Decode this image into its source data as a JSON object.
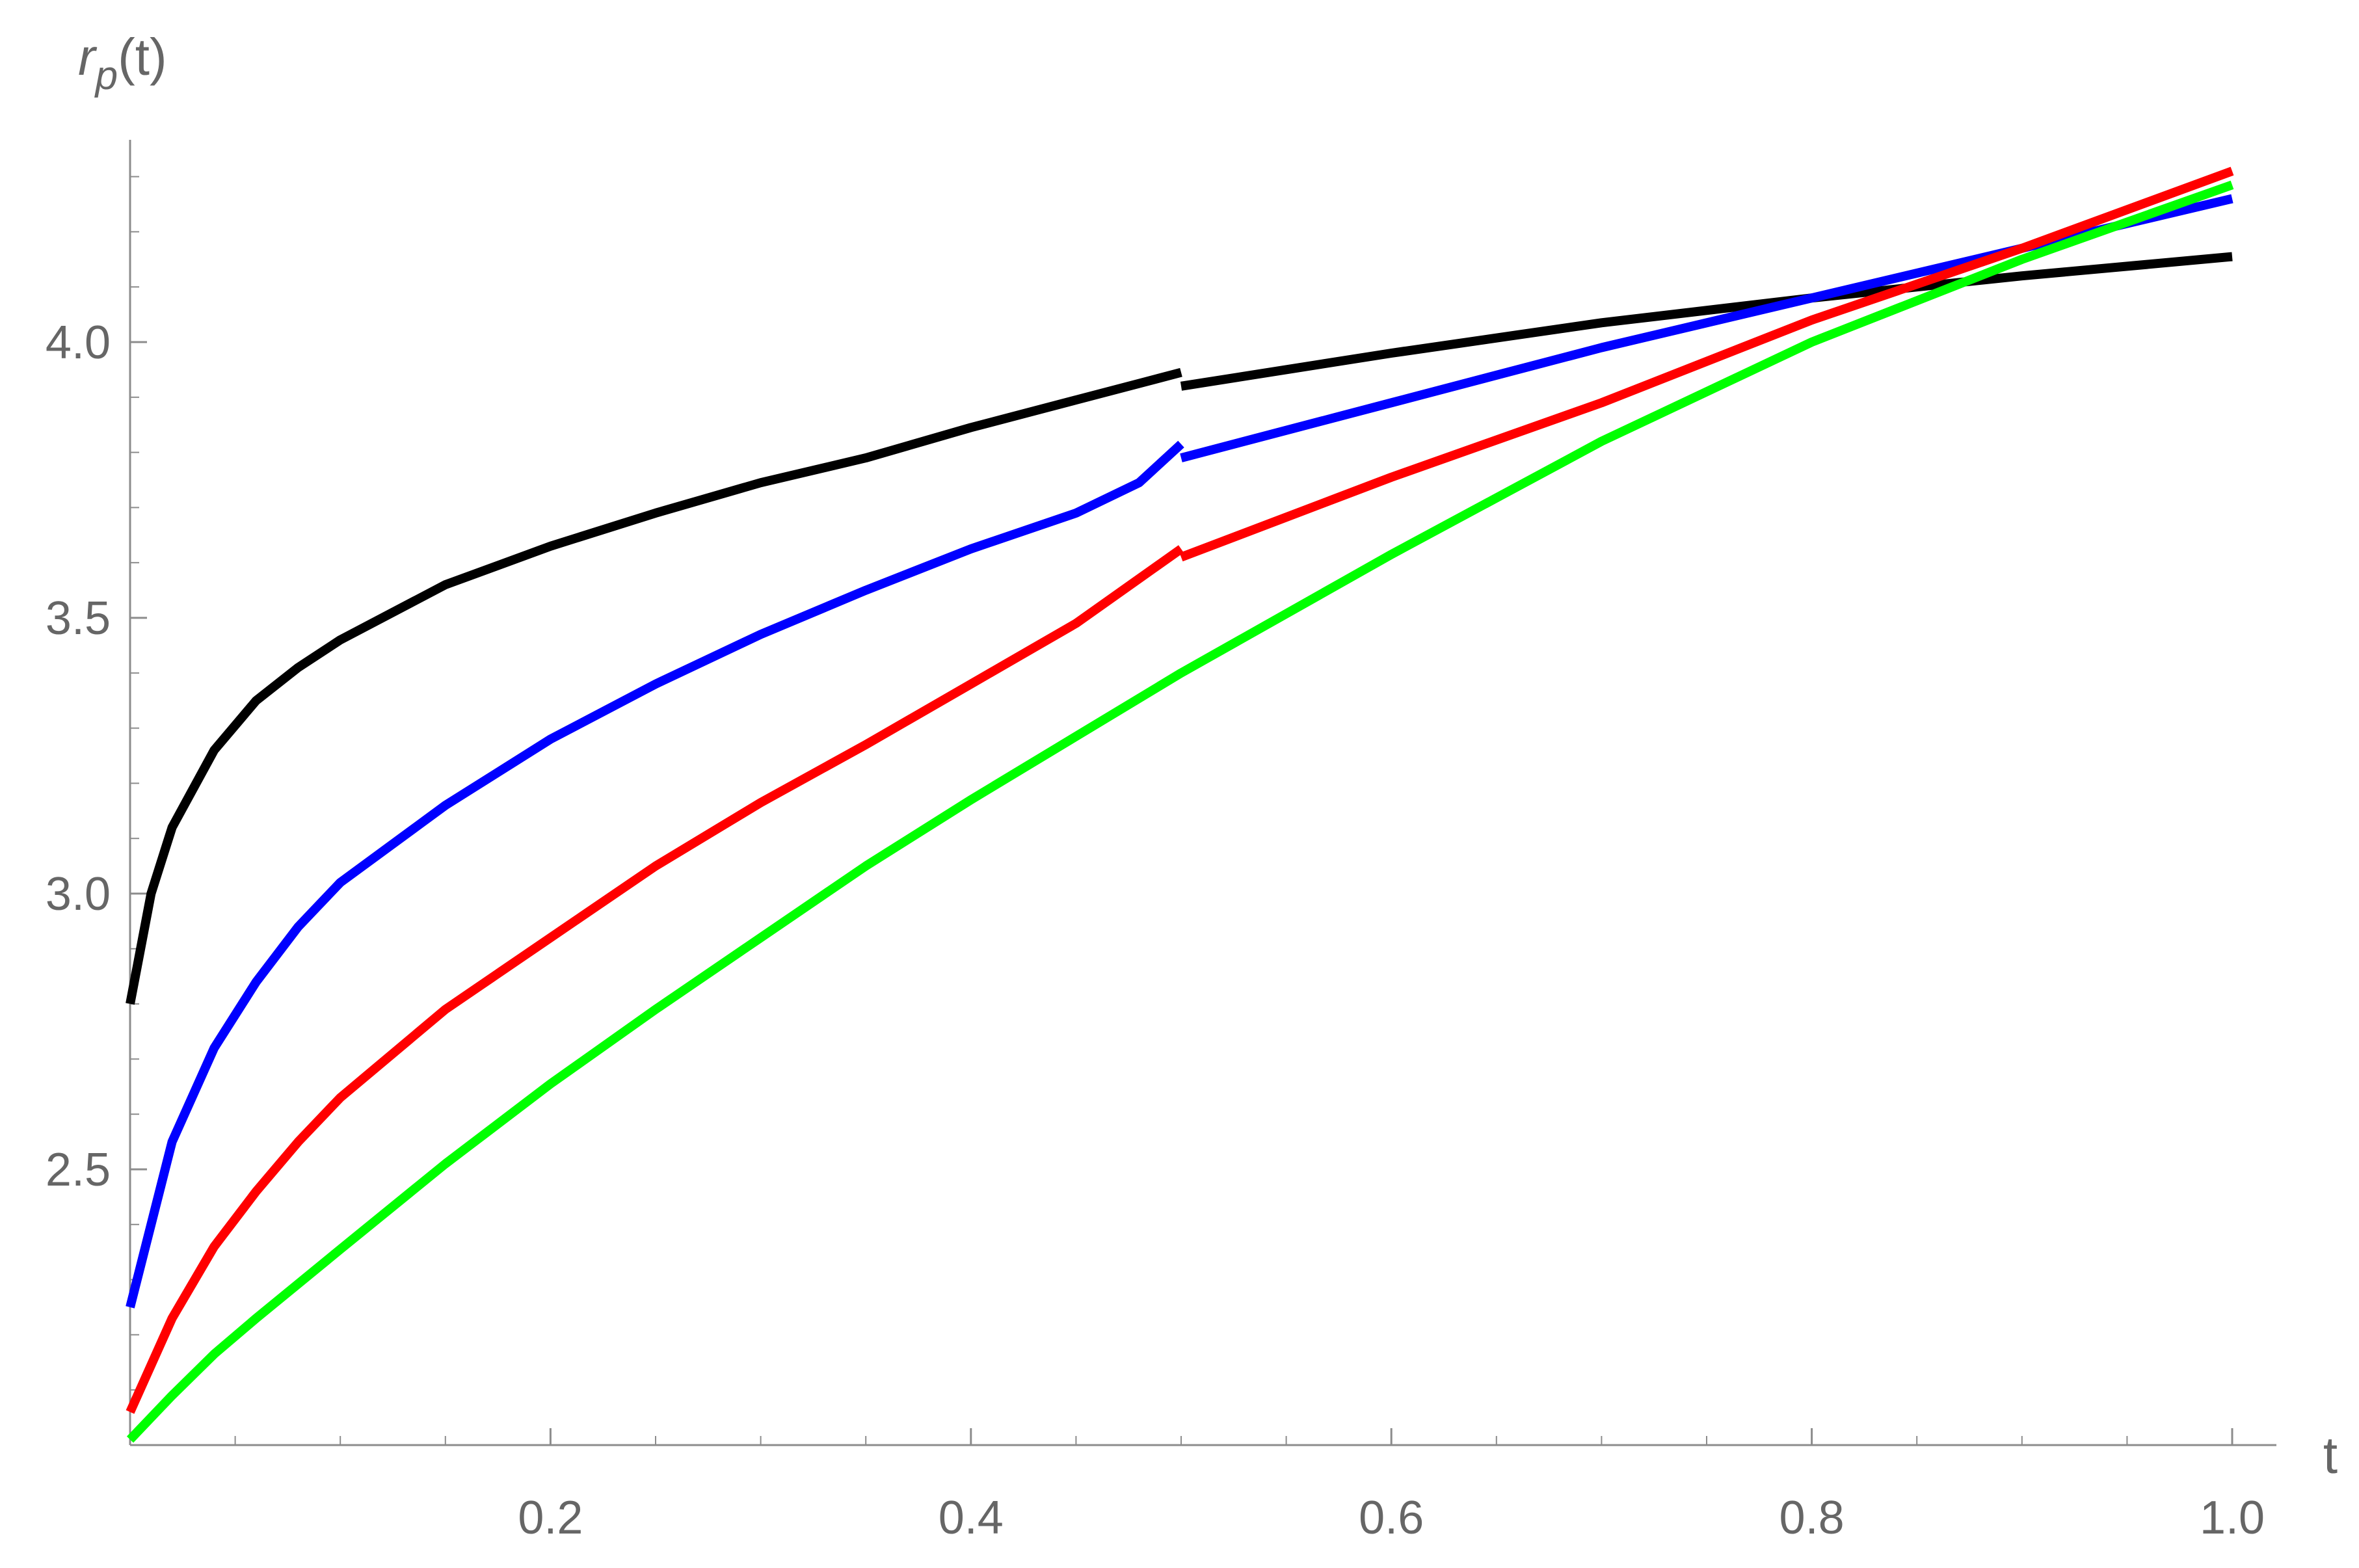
{
  "chart_data": {
    "type": "line",
    "xlabel": "t",
    "ylabel_main": "r",
    "ylabel_sub": "p",
    "ylabel_rest": "(t)",
    "xlim": [
      0,
      1.02
    ],
    "ylim": [
      2.0,
      4.38
    ],
    "x_ticks": [
      {
        "v": 0.2,
        "label": "0.2"
      },
      {
        "v": 0.4,
        "label": "0.4"
      },
      {
        "v": 0.6,
        "label": "0.6"
      },
      {
        "v": 0.8,
        "label": "0.8"
      },
      {
        "v": 1.0,
        "label": "1.0"
      }
    ],
    "y_ticks": [
      {
        "v": 2.5,
        "label": "2.5"
      },
      {
        "v": 3.0,
        "label": "3.0"
      },
      {
        "v": 3.5,
        "label": "3.5"
      },
      {
        "v": 4.0,
        "label": "4.0"
      }
    ],
    "x_minor_step": 0.05,
    "y_minor_step": 0.1,
    "grid": false,
    "series": [
      {
        "color": "#000000",
        "segments": [
          [
            [
              0,
              2.8
            ],
            [
              0.01,
              3.0
            ],
            [
              0.02,
              3.12
            ],
            [
              0.04,
              3.26
            ],
            [
              0.06,
              3.35
            ],
            [
              0.08,
              3.41
            ],
            [
              0.1,
              3.46
            ],
            [
              0.15,
              3.56
            ],
            [
              0.2,
              3.63
            ],
            [
              0.25,
              3.69
            ],
            [
              0.3,
              3.745
            ],
            [
              0.35,
              3.79
            ],
            [
              0.4,
              3.845
            ],
            [
              0.45,
              3.895
            ],
            [
              0.48,
              3.925
            ],
            [
              0.5,
              3.945
            ]
          ],
          [
            [
              0.5,
              3.92
            ],
            [
              0.6,
              3.98
            ],
            [
              0.7,
              4.035
            ],
            [
              0.8,
              4.08
            ],
            [
              0.9,
              4.12
            ],
            [
              1.0,
              4.155
            ]
          ]
        ]
      },
      {
        "color": "#0000ff",
        "segments": [
          [
            [
              0,
              2.25
            ],
            [
              0.02,
              2.55
            ],
            [
              0.04,
              2.72
            ],
            [
              0.06,
              2.84
            ],
            [
              0.08,
              2.94
            ],
            [
              0.1,
              3.02
            ],
            [
              0.15,
              3.16
            ],
            [
              0.2,
              3.28
            ],
            [
              0.25,
              3.38
            ],
            [
              0.3,
              3.47
            ],
            [
              0.35,
              3.55
            ],
            [
              0.4,
              3.625
            ],
            [
              0.45,
              3.69
            ],
            [
              0.48,
              3.745
            ],
            [
              0.5,
              3.815
            ]
          ],
          [
            [
              0.5,
              3.79
            ],
            [
              0.6,
              3.89
            ],
            [
              0.7,
              3.99
            ],
            [
              0.8,
              4.08
            ],
            [
              0.9,
              4.17
            ],
            [
              1.0,
              4.26
            ]
          ]
        ]
      },
      {
        "color": "#ff0000",
        "segments": [
          [
            [
              0,
              2.06
            ],
            [
              0.02,
              2.23
            ],
            [
              0.04,
              2.36
            ],
            [
              0.06,
              2.46
            ],
            [
              0.08,
              2.55
            ],
            [
              0.1,
              2.63
            ],
            [
              0.15,
              2.79
            ],
            [
              0.2,
              2.92
            ],
            [
              0.25,
              3.05
            ],
            [
              0.3,
              3.165
            ],
            [
              0.35,
              3.27
            ],
            [
              0.4,
              3.38
            ],
            [
              0.45,
              3.49
            ],
            [
              0.5,
              3.625
            ]
          ],
          [
            [
              0.5,
              3.61
            ],
            [
              0.6,
              3.755
            ],
            [
              0.7,
              3.89
            ],
            [
              0.8,
              4.04
            ],
            [
              0.9,
              4.17
            ],
            [
              1.0,
              4.31
            ]
          ]
        ]
      },
      {
        "color": "#00ff00",
        "segments": [
          [
            [
              0,
              2.01
            ],
            [
              0.02,
              2.09
            ],
            [
              0.04,
              2.165
            ],
            [
              0.06,
              2.23
            ],
            [
              0.1,
              2.355
            ],
            [
              0.15,
              2.51
            ],
            [
              0.2,
              2.655
            ],
            [
              0.25,
              2.79
            ],
            [
              0.3,
              2.92
            ],
            [
              0.35,
              3.05
            ],
            [
              0.4,
              3.17
            ],
            [
              0.45,
              3.285
            ],
            [
              0.5,
              3.4
            ],
            [
              0.6,
              3.615
            ],
            [
              0.7,
              3.82
            ],
            [
              0.8,
              4.0
            ],
            [
              0.9,
              4.15
            ],
            [
              1.0,
              4.285
            ]
          ]
        ]
      }
    ]
  }
}
